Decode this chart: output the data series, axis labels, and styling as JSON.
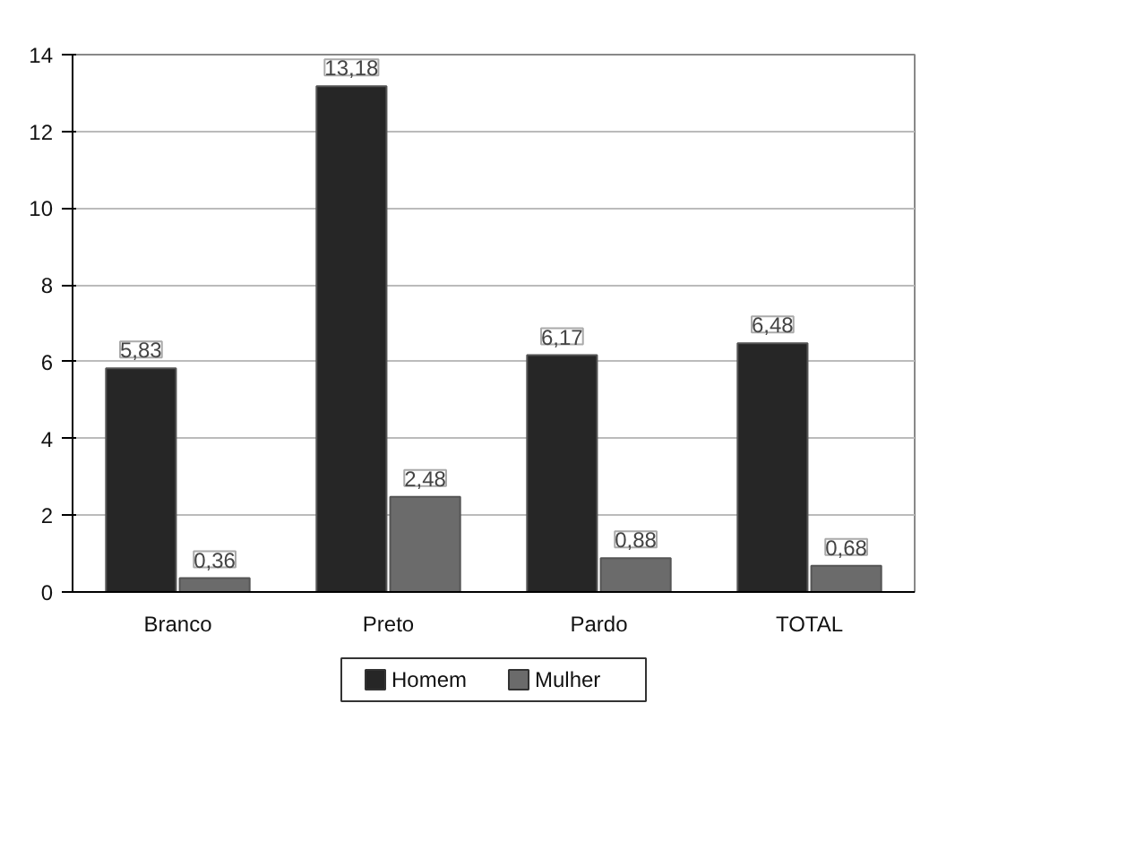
{
  "chart_data": {
    "type": "bar",
    "categories": [
      "Branco",
      "Preto",
      "Pardo",
      "TOTAL"
    ],
    "series": [
      {
        "name": "Homem",
        "color": "#262626",
        "values": [
          5.83,
          13.18,
          6.17,
          6.48
        ],
        "value_labels": [
          "5,83",
          "13,18",
          "6,17",
          "6,48"
        ]
      },
      {
        "name": "Mulher",
        "color": "#6b6b6b",
        "values": [
          0.36,
          2.48,
          0.88,
          0.68
        ],
        "value_labels": [
          "0,36",
          "2,48",
          "0,88",
          "0,68"
        ]
      }
    ],
    "ylim": [
      0,
      14
    ],
    "yticks": [
      0,
      2,
      4,
      6,
      8,
      10,
      12,
      14
    ],
    "grid": "y",
    "legend": "bottom"
  }
}
